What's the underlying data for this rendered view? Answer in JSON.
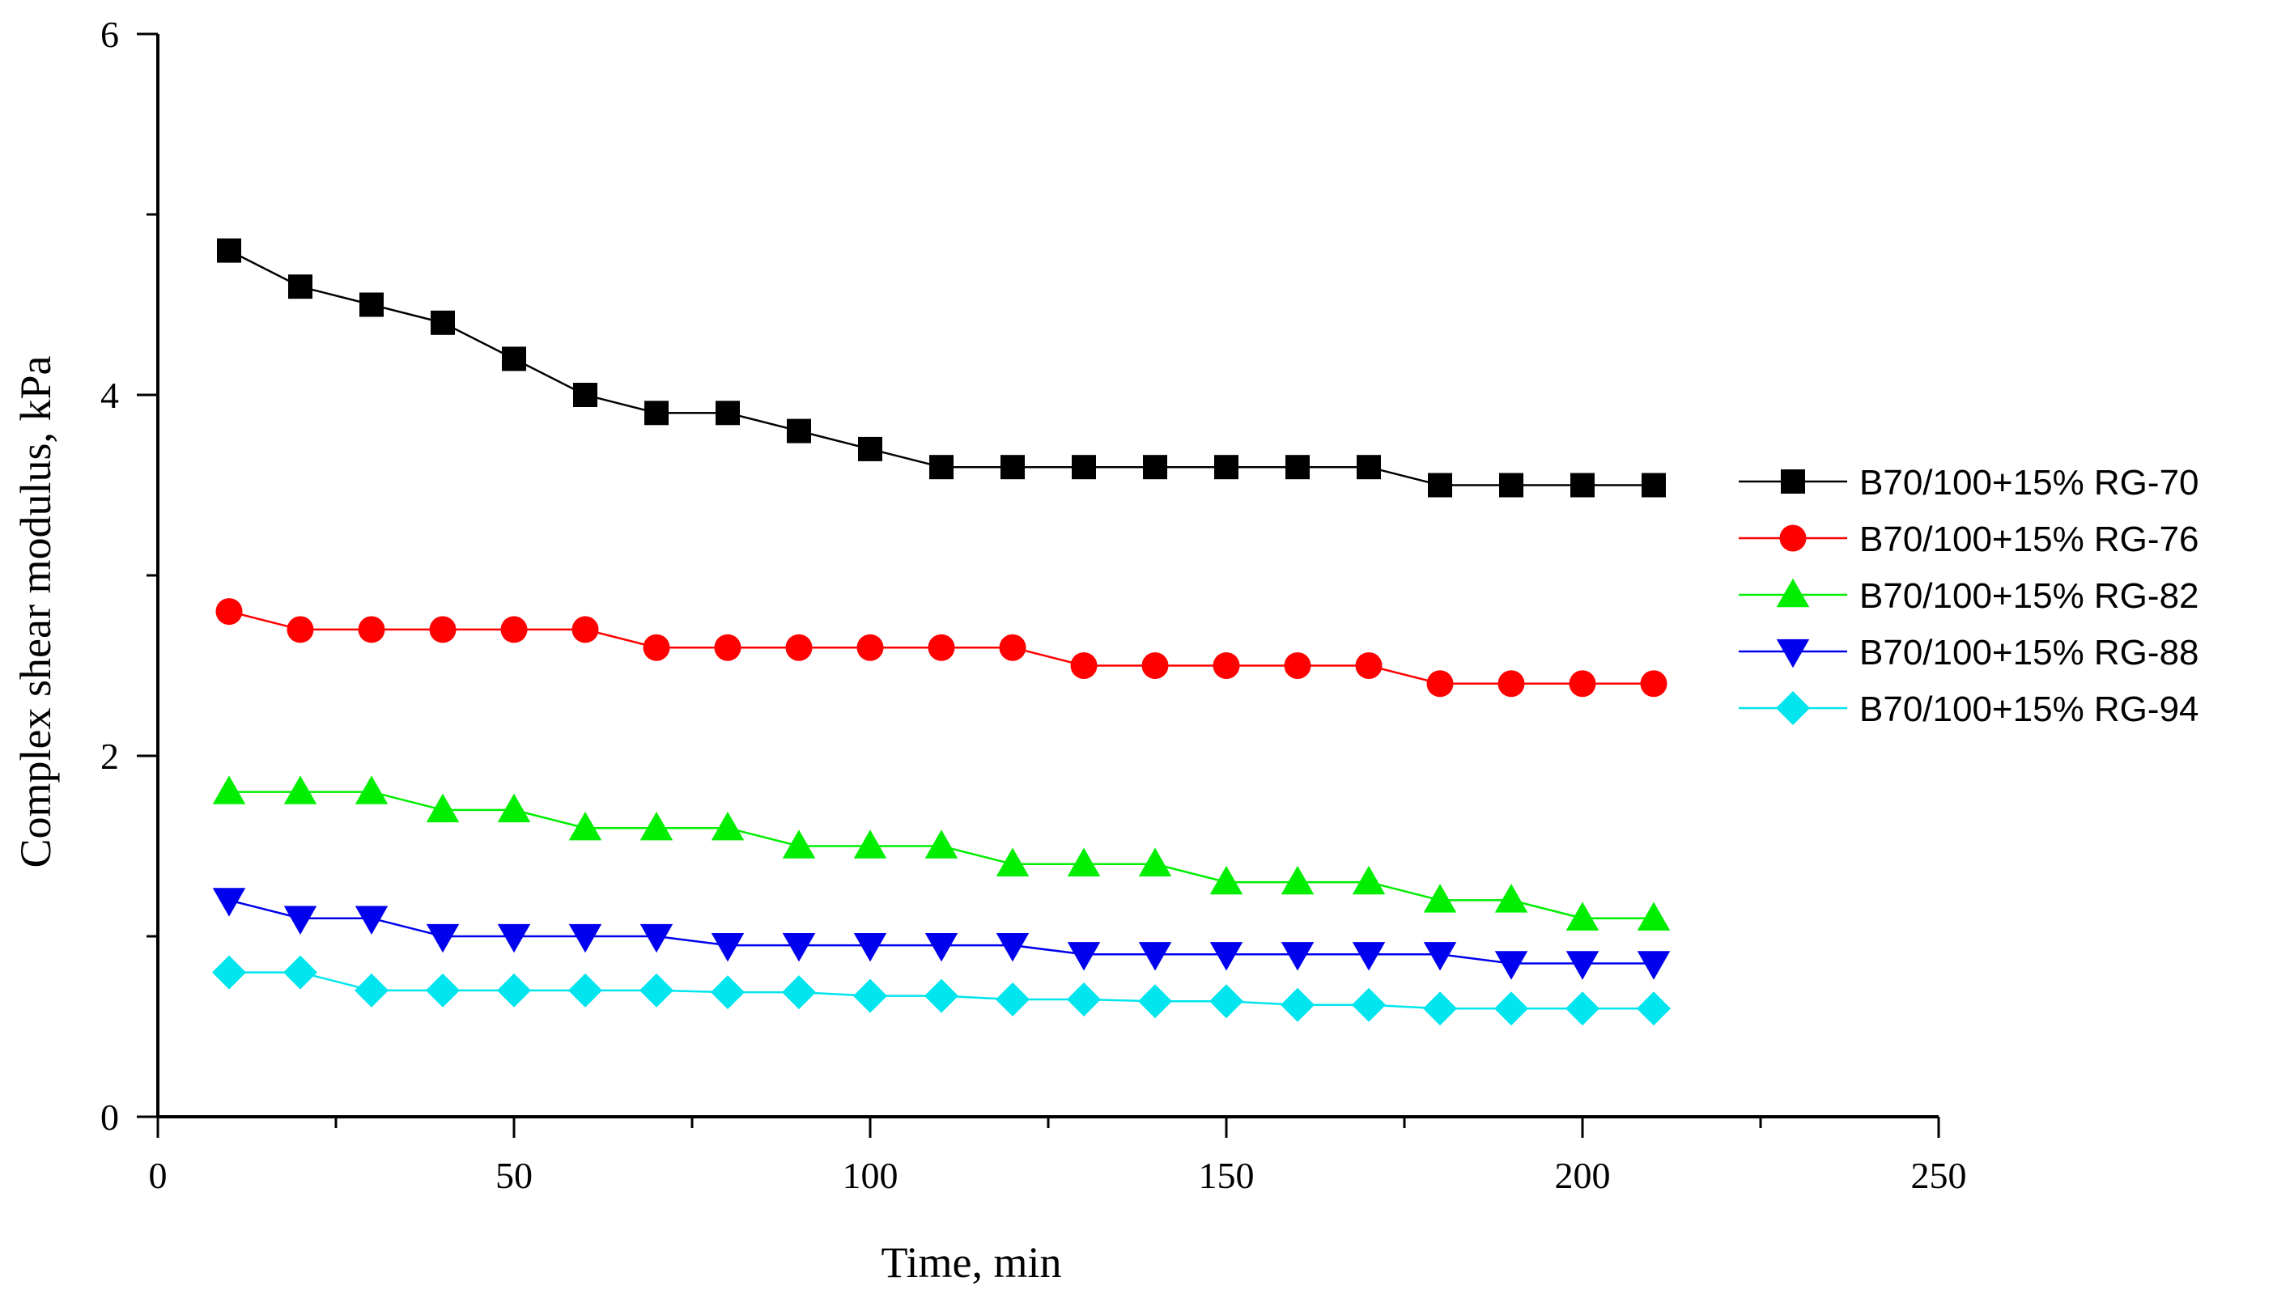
{
  "chart_data": {
    "type": "line",
    "xlabel": "Time, min",
    "ylabel": "Complex shear modulus, kPa",
    "xlim": [
      0,
      250
    ],
    "ylim": [
      0,
      6
    ],
    "x_ticks": [
      0,
      50,
      100,
      150,
      200,
      250
    ],
    "y_ticks": [
      0,
      2,
      4,
      6
    ],
    "grid": false,
    "legend_position": "right",
    "x": [
      10,
      20,
      30,
      40,
      50,
      60,
      70,
      80,
      90,
      100,
      110,
      120,
      130,
      140,
      150,
      160,
      170,
      180,
      190,
      200,
      210
    ],
    "series": [
      {
        "name": "B70/100+15% RG-70",
        "color": "#000000",
        "marker": "square",
        "values": [
          4.8,
          4.6,
          4.5,
          4.4,
          4.2,
          4.0,
          3.9,
          3.9,
          3.8,
          3.7,
          3.6,
          3.6,
          3.6,
          3.6,
          3.6,
          3.6,
          3.6,
          3.5,
          3.5,
          3.5,
          3.5
        ]
      },
      {
        "name": "B70/100+15% RG-76",
        "color": "#ff0000",
        "marker": "circle",
        "values": [
          2.8,
          2.7,
          2.7,
          2.7,
          2.7,
          2.7,
          2.6,
          2.6,
          2.6,
          2.6,
          2.6,
          2.6,
          2.5,
          2.5,
          2.5,
          2.5,
          2.5,
          2.4,
          2.4,
          2.4,
          2.4
        ]
      },
      {
        "name": "B70/100+15% RG-82",
        "color": "#00ee00",
        "marker": "triangle-up",
        "values": [
          1.8,
          1.8,
          1.8,
          1.7,
          1.7,
          1.6,
          1.6,
          1.6,
          1.5,
          1.5,
          1.5,
          1.4,
          1.4,
          1.4,
          1.3,
          1.3,
          1.3,
          1.2,
          1.2,
          1.1,
          1.1
        ]
      },
      {
        "name": "B70/100+15% RG-88",
        "color": "#0000ee",
        "marker": "triangle-down",
        "values": [
          1.2,
          1.1,
          1.1,
          1.0,
          1.0,
          1.0,
          1.0,
          0.95,
          0.95,
          0.95,
          0.95,
          0.95,
          0.9,
          0.9,
          0.9,
          0.9,
          0.9,
          0.9,
          0.85,
          0.85,
          0.85
        ]
      },
      {
        "name": "B70/100+15% RG-94",
        "color": "#00e5ee",
        "marker": "diamond",
        "values": [
          0.8,
          0.8,
          0.7,
          0.7,
          0.7,
          0.7,
          0.7,
          0.69,
          0.69,
          0.67,
          0.67,
          0.65,
          0.65,
          0.64,
          0.64,
          0.62,
          0.62,
          0.6,
          0.6,
          0.6,
          0.6
        ]
      }
    ]
  }
}
